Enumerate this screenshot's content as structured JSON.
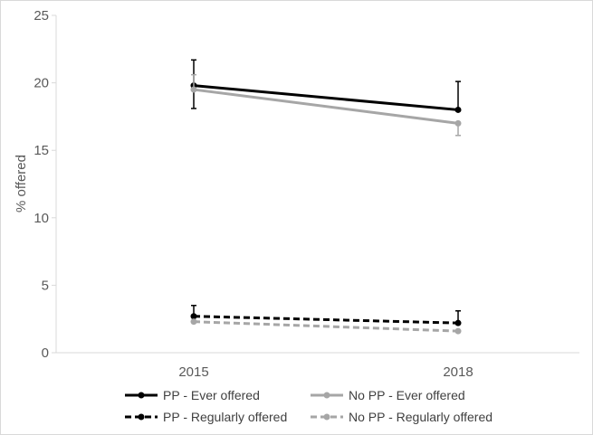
{
  "chart_data": {
    "type": "line",
    "title": "",
    "xlabel": "",
    "ylabel": "% offered",
    "categories": [
      "2015",
      "2018"
    ],
    "ylim": [
      0,
      25
    ],
    "yticks": [
      "0",
      "5",
      "10",
      "15",
      "20",
      "25"
    ],
    "grid": false,
    "legend_position": "bottom",
    "series": [
      {
        "name": "PP - Ever offered",
        "values": [
          19.8,
          18.0
        ],
        "error_low": [
          18.1,
          null
        ],
        "error_high": [
          21.7,
          20.1
        ],
        "color": "#000000",
        "dashed": false
      },
      {
        "name": "No PP - Ever offered",
        "values": [
          19.5,
          17.0
        ],
        "error_low": [
          null,
          16.1
        ],
        "error_high": [
          20.6,
          null
        ],
        "color": "#a6a6a6",
        "dashed": false
      },
      {
        "name": "PP - Regularly offered",
        "values": [
          2.7,
          2.2
        ],
        "error_low": [
          null,
          null
        ],
        "error_high": [
          3.5,
          3.1
        ],
        "color": "#000000",
        "dashed": true
      },
      {
        "name": "No PP - Regularly offered",
        "values": [
          2.3,
          1.6
        ],
        "error_low": [
          null,
          null
        ],
        "error_high": [
          null,
          null
        ],
        "color": "#a6a6a6",
        "dashed": true
      }
    ]
  }
}
